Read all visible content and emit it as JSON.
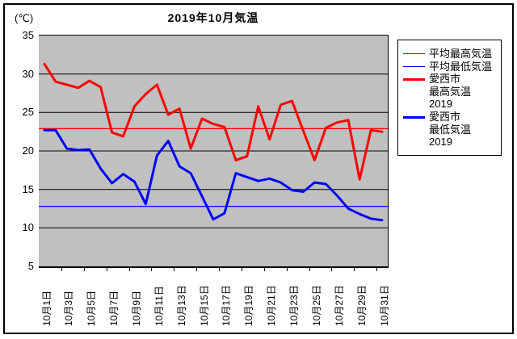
{
  "chart_data": {
    "type": "line",
    "title": "2019年10月気温",
    "y_unit": "(℃)",
    "ylim": [
      5,
      35
    ],
    "y_ticks": [
      35,
      30,
      25,
      20,
      15,
      10,
      5
    ],
    "x_tick_labels": [
      "10月1日",
      "10月3日",
      "10月5日",
      "10月7日",
      "10月9日",
      "10月11日",
      "10月13日",
      "10月15日",
      "10月17日",
      "10月19日",
      "10月21日",
      "10月23日",
      "10月25日",
      "10月27日",
      "10月29日",
      "10月31日"
    ],
    "x_label_interval": 2,
    "n_points": 31,
    "grid": "horizontal",
    "plot_bg": "#c0c0c0",
    "legend_position": "right",
    "series": [
      {
        "name": "平均最高気温",
        "legend_lines": [
          "平均最高気温"
        ],
        "color": "#ff0000",
        "style": "thin",
        "type": "constant",
        "value": 22.9
      },
      {
        "name": "平均最低気温",
        "legend_lines": [
          "平均最低気温"
        ],
        "color": "#0000ff",
        "style": "thin",
        "type": "constant",
        "value": 12.8
      },
      {
        "name": "愛西市 最高気温 2019",
        "legend_lines": [
          "愛西市",
          "最高気温 2019"
        ],
        "color": "#ff0000",
        "style": "thick",
        "type": "daily",
        "values": [
          31.3,
          29.0,
          28.6,
          28.2,
          29.1,
          28.3,
          22.4,
          21.9,
          25.8,
          27.4,
          28.6,
          24.7,
          25.5,
          20.3,
          24.2,
          23.5,
          23.1,
          18.8,
          19.3,
          25.8,
          21.5,
          26.0,
          26.5,
          22.6,
          18.8,
          23.0,
          23.7,
          24.0,
          16.3,
          22.7,
          22.5
        ]
      },
      {
        "name": "愛西市 最低気温 2019",
        "legend_lines": [
          "愛西市",
          "最低気温 2019"
        ],
        "color": "#0000ff",
        "style": "thick",
        "type": "daily",
        "values": [
          22.7,
          22.7,
          20.3,
          20.1,
          20.2,
          17.7,
          15.8,
          17.0,
          16.0,
          13.1,
          19.4,
          21.3,
          18.0,
          17.1,
          14.1,
          11.1,
          11.9,
          17.1,
          16.6,
          16.1,
          16.4,
          15.9,
          14.9,
          14.7,
          15.9,
          15.7,
          14.2,
          12.5,
          11.8,
          11.2,
          11.0
        ]
      }
    ]
  }
}
